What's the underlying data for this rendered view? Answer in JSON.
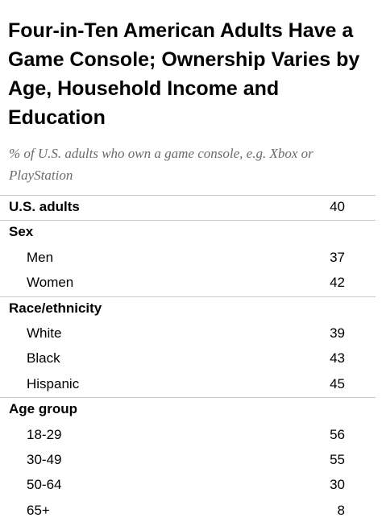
{
  "title": "Four-in-Ten American Adults Have a Game Console; Ownership Varies by Age, Household Income and Education",
  "subtitle": "% of U.S. adults who own a game console, e.g. Xbox or PlayStation",
  "chart_data": {
    "type": "table",
    "title": "Four-in-Ten American Adults Have a Game Console; Ownership Varies by Age, Household Income and Education",
    "subtitle": "% of U.S. adults who own a game console, e.g. Xbox or PlayStation",
    "rows": [
      {
        "label": "U.S. adults",
        "value": "40",
        "kind": "total"
      },
      {
        "label": "Sex",
        "value": "",
        "kind": "header"
      },
      {
        "label": "Men",
        "value": "37",
        "kind": "item"
      },
      {
        "label": "Women",
        "value": "42",
        "kind": "item"
      },
      {
        "label": "Race/ethnicity",
        "value": "",
        "kind": "header"
      },
      {
        "label": "White",
        "value": "39",
        "kind": "item"
      },
      {
        "label": "Black",
        "value": "43",
        "kind": "item"
      },
      {
        "label": "Hispanic",
        "value": "45",
        "kind": "item"
      },
      {
        "label": "Age group",
        "value": "",
        "kind": "header"
      },
      {
        "label": "18-29",
        "value": "56",
        "kind": "item"
      },
      {
        "label": "30-49",
        "value": "55",
        "kind": "item"
      },
      {
        "label": "50-64",
        "value": "30",
        "kind": "item"
      },
      {
        "label": "65+",
        "value": "8",
        "kind": "item"
      }
    ]
  }
}
